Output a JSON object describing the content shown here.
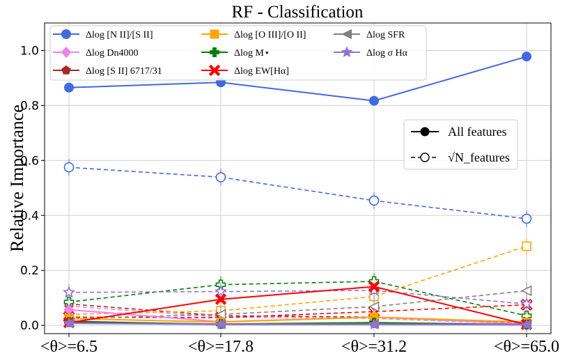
{
  "chart_data": {
    "type": "line",
    "title": "RF - Classification",
    "xlabel": "",
    "ylabel": "Relative Importance",
    "categories": [
      "<θ>=6.5",
      "<θ>=17.8",
      "<θ>=31.2",
      "<θ>=65.0"
    ],
    "ylim": [
      -0.03,
      1.1
    ],
    "yticks": [
      "0.0",
      "0.2",
      "0.4",
      "0.6",
      "0.8",
      "1.0"
    ],
    "ytick_values": [
      0.0,
      0.2,
      0.4,
      0.6,
      0.8,
      1.0
    ],
    "grid": true,
    "legend_placement": "top-left",
    "series": [
      {
        "name": "Δlog [N II]/[S II]",
        "color": "#4169e1",
        "marker": "circle",
        "all_features": [
          0.865,
          0.884,
          0.817,
          0.978
        ],
        "sqrt_features": [
          0.575,
          0.539,
          0.454,
          0.388
        ]
      },
      {
        "name": "Δlog Dn4000",
        "color": "#ee82ee",
        "marker": "diamond",
        "all_features": [
          0.057,
          0.013,
          0.03,
          0.005
        ],
        "sqrt_features": [
          0.07,
          0.03,
          0.025,
          0.005
        ]
      },
      {
        "name": "Δlog [S II] 6717/31",
        "color": "#a52a2a",
        "marker": "pentagon",
        "all_features": [
          0.015,
          0.003,
          0.005,
          0.002
        ],
        "sqrt_features": [
          0.078,
          0.035,
          0.03,
          0.01
        ]
      },
      {
        "name": "Δlog [O III]/[O II]",
        "color": "#ffa500",
        "marker": "square",
        "all_features": [
          0.025,
          0.012,
          0.03,
          0.012
        ],
        "sqrt_features": [
          0.04,
          0.053,
          0.105,
          0.288
        ]
      },
      {
        "name": "Δlog M⋆",
        "color": "#008000",
        "marker": "plus",
        "all_features": [
          0.012,
          0.005,
          0.01,
          0.003
        ],
        "sqrt_features": [
          0.085,
          0.148,
          0.16,
          0.035
        ]
      },
      {
        "name": "Δlog EW[Hα]",
        "color": "#ff0000",
        "marker": "x",
        "all_features": [
          0.01,
          0.095,
          0.141,
          0.003
        ],
        "sqrt_features": [
          0.03,
          0.028,
          0.05,
          0.075
        ]
      },
      {
        "name": "Δlog SFR",
        "color": "#808080",
        "marker": "triangle-left",
        "all_features": [
          0.008,
          0.005,
          0.005,
          0.003
        ],
        "sqrt_features": [
          0.025,
          0.04,
          0.068,
          0.126
        ]
      },
      {
        "name": "Δlog σ Hα",
        "color": "#9370db",
        "marker": "star",
        "all_features": [
          0.008,
          0.003,
          0.003,
          0.002
        ],
        "sqrt_features": [
          0.12,
          0.123,
          0.127,
          0.078
        ]
      }
    ],
    "style_legend": [
      {
        "label": "All features",
        "style": "solid"
      },
      {
        "label": "√N_features",
        "style": "dashed"
      }
    ]
  }
}
